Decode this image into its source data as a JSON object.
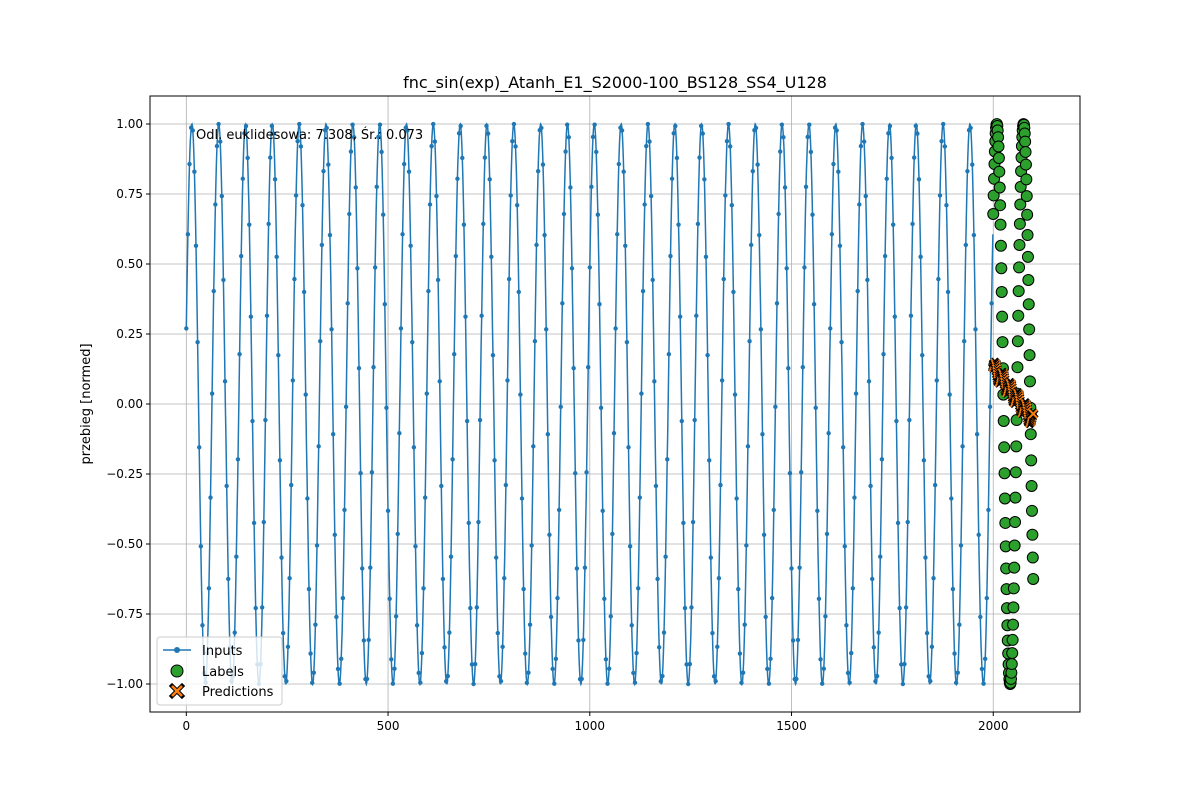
{
  "chart_data": {
    "type": "line",
    "title": "fnc_sin(exp)_Atanh_E1_S2000-100_BS128_SS4_U128",
    "annotation": "Odl. euklidesowa: 7.308, Śr.: 0.073",
    "xlabel": "",
    "ylabel": "przebieg [normed]",
    "xlim": [
      -90,
      2215
    ],
    "ylim": [
      -1.1,
      1.1
    ],
    "xticks": [
      0,
      500,
      1000,
      1500,
      2000
    ],
    "yticks": [
      1.0,
      0.75,
      0.5,
      0.25,
      0.0,
      -0.25,
      -0.5,
      -0.75,
      -1.0
    ],
    "ytick_labels": [
      "1.00",
      "0.75",
      "0.50",
      "0.25",
      "0.00",
      "−0.25",
      "−0.50",
      "−0.75",
      "−1.00"
    ],
    "grid": true,
    "legend_position": "lower-left",
    "inputs_formula": "sin(exp(k*x)) sampled at x = 0..1999 (≈30 oscillations, period ≈ 66 samples, first value ≈ 0.27)",
    "series": [
      {
        "name": "Inputs",
        "style": "line with dot markers",
        "color": "#1f77b4",
        "x_range": [
          0,
          1999
        ],
        "n_points": 2000,
        "start_value": 0.27,
        "period_samples": 66.5
      },
      {
        "name": "Labels",
        "style": "large green circles",
        "color": "#2ca02c",
        "x_range": [
          2000,
          2099
        ],
        "n_points": 100,
        "description": "continuation of the sine wave; dense columns near x≈2005, 2040, 2085"
      },
      {
        "name": "Predictions",
        "style": "orange X markers",
        "color": "#ff7f0e",
        "x_range": [
          2000,
          2099
        ],
        "n_points": 100,
        "start_value": 0.13,
        "end_value": -0.06
      }
    ],
    "legend": [
      {
        "label": "Inputs",
        "marker": "line-dot"
      },
      {
        "label": "Labels",
        "marker": "circle"
      },
      {
        "label": "Predictions",
        "marker": "x"
      }
    ]
  }
}
